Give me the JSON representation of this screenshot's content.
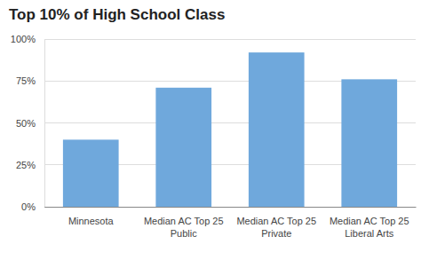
{
  "chart_data": {
    "type": "bar",
    "title": "Top 10% of High School Class",
    "categories": [
      "Minnesota",
      "Median AC Top 25 Public",
      "Median AC Top 25 Private",
      "Median AC Top 25 Liberal Arts"
    ],
    "values": [
      40,
      71,
      92,
      76
    ],
    "color": "#6fa8dc",
    "ylim": [
      0,
      100
    ],
    "yticks": [
      {
        "value": 0,
        "label": "0%"
      },
      {
        "value": 25,
        "label": "25%"
      },
      {
        "value": 50,
        "label": "50%"
      },
      {
        "value": 75,
        "label": "75%"
      },
      {
        "value": 100,
        "label": "100%"
      }
    ],
    "grid": true
  }
}
